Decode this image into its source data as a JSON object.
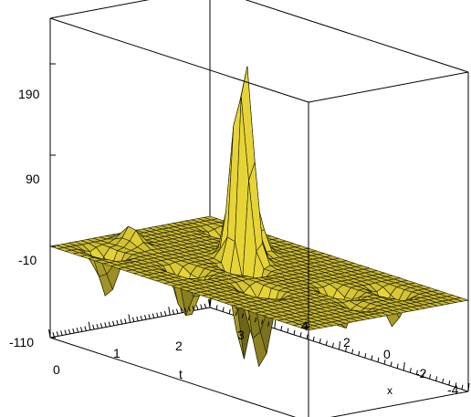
{
  "chart_data": {
    "type": "surface3d",
    "title": "",
    "xlabel": "t",
    "ylabel": "x",
    "zlabel": "",
    "xlim": [
      0,
      4
    ],
    "ylim": [
      -4,
      4
    ],
    "zlim": [
      -110,
      240
    ],
    "z_ticks": [
      "190",
      "90",
      "-10",
      "-110"
    ],
    "t_ticks": [
      "0",
      "1",
      "2",
      "3",
      "4"
    ],
    "x_ticks": [
      "4",
      "2",
      "0",
      "-2",
      "-4"
    ],
    "surface_color": "#c8b830",
    "wire_color": "#1a1a00",
    "box_color": "#000000",
    "grid": false,
    "peaks": [
      {
        "t": 2.4,
        "x": 1.0,
        "z": 237
      },
      {
        "t": 3.0,
        "x": 1.5,
        "z": 60
      },
      {
        "t": 1.4,
        "x": 3.2,
        "z": 10
      },
      {
        "t": 3.6,
        "x": -0.6,
        "z": -10
      },
      {
        "t": 2.0,
        "x": -3.0,
        "z": -20
      },
      {
        "t": 1.0,
        "x": 1.0,
        "z": -70
      },
      {
        "t": 2.0,
        "x": 0.5,
        "z": -110
      },
      {
        "t": 1.2,
        "x": -1.0,
        "z": -100
      },
      {
        "t": 2.4,
        "x": -2.0,
        "z": -60
      },
      {
        "t": 3.2,
        "x": -2.6,
        "z": -50
      },
      {
        "t": 0.6,
        "x": 3.0,
        "z": -60
      },
      {
        "t": 3.4,
        "x": 2.8,
        "z": -40
      }
    ]
  }
}
